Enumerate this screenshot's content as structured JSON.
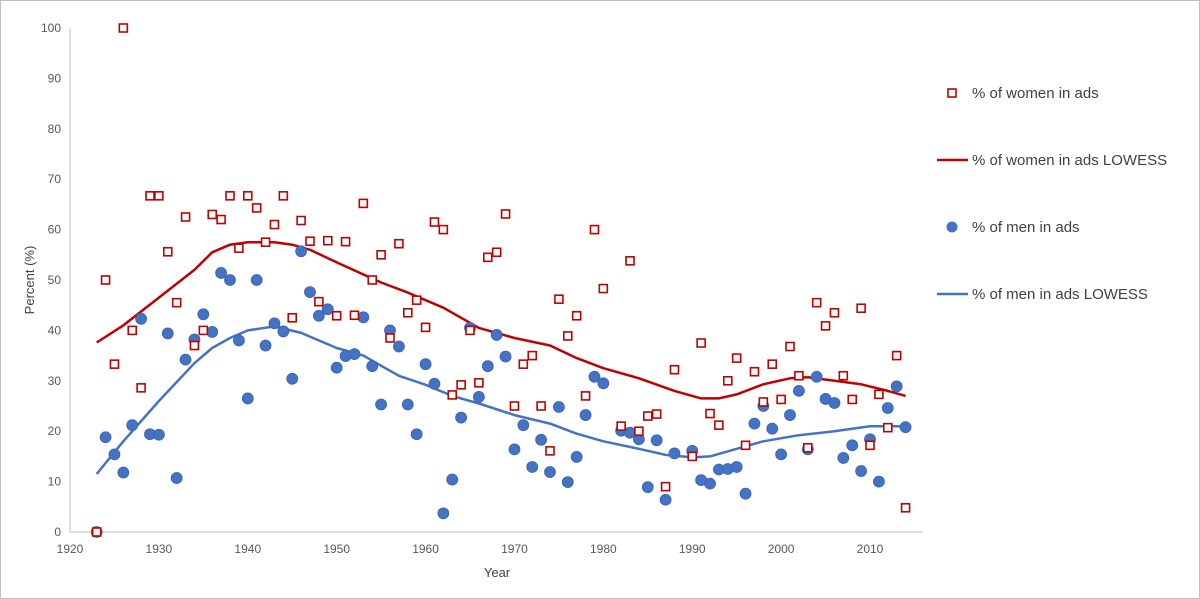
{
  "chart_data": {
    "type": "scatter",
    "title": "",
    "xlabel": "Year",
    "ylabel": "Percent (%)",
    "xlim": [
      1920,
      2015
    ],
    "ylim": [
      0,
      100
    ],
    "x_ticks": [
      "1920",
      "1930",
      "1940",
      "1950",
      "1960",
      "1970",
      "1980",
      "1990",
      "2000",
      "2010"
    ],
    "y_ticks": [
      "0",
      "10",
      "20",
      "30",
      "40",
      "50",
      "60",
      "70",
      "80",
      "90",
      "100"
    ],
    "grid": false,
    "legend_position": "right",
    "series": [
      {
        "name": "% of women in ads",
        "kind": "scatter",
        "marker": "hollow-square",
        "color": "#c00000",
        "points": [
          [
            1923,
            0
          ],
          [
            1924,
            50
          ],
          [
            1925,
            33.3
          ],
          [
            1926,
            100
          ],
          [
            1927,
            40
          ],
          [
            1928,
            28.6
          ],
          [
            1929,
            66.7
          ],
          [
            1930,
            66.7
          ],
          [
            1931,
            55.6
          ],
          [
            1932,
            45.5
          ],
          [
            1933,
            62.5
          ],
          [
            1934,
            37
          ],
          [
            1935,
            40
          ],
          [
            1936,
            63
          ],
          [
            1937,
            62
          ],
          [
            1938,
            66.7
          ],
          [
            1939,
            56.3
          ],
          [
            1940,
            66.7
          ],
          [
            1941,
            64.3
          ],
          [
            1942,
            57.5
          ],
          [
            1943,
            61
          ],
          [
            1944,
            66.7
          ],
          [
            1945,
            42.5
          ],
          [
            1946,
            61.8
          ],
          [
            1947,
            57.7
          ],
          [
            1948,
            45.7
          ],
          [
            1949,
            57.8
          ],
          [
            1950,
            42.9
          ],
          [
            1951,
            57.6
          ],
          [
            1952,
            43
          ],
          [
            1953,
            65.2
          ],
          [
            1954,
            50
          ],
          [
            1955,
            55
          ],
          [
            1956,
            38.5
          ],
          [
            1957,
            57.2
          ],
          [
            1958,
            43.5
          ],
          [
            1959,
            46
          ],
          [
            1960,
            40.6
          ],
          [
            1961,
            61.5
          ],
          [
            1962,
            60
          ],
          [
            1963,
            27.2
          ],
          [
            1964,
            29.2
          ],
          [
            1965,
            40
          ],
          [
            1966,
            29.6
          ],
          [
            1967,
            54.5
          ],
          [
            1968,
            55.5
          ],
          [
            1969,
            63.1
          ],
          [
            1970,
            25
          ],
          [
            1971,
            33.3
          ],
          [
            1972,
            35
          ],
          [
            1973,
            25
          ],
          [
            1974,
            16.1
          ],
          [
            1975,
            46.2
          ],
          [
            1976,
            38.9
          ],
          [
            1977,
            42.9
          ],
          [
            1978,
            27
          ],
          [
            1979,
            60
          ],
          [
            1980,
            48.3
          ],
          [
            1982,
            21
          ],
          [
            1983,
            53.8
          ],
          [
            1984,
            20
          ],
          [
            1985,
            23
          ],
          [
            1986,
            23.4
          ],
          [
            1987,
            9
          ],
          [
            1988,
            32.2
          ],
          [
            1990,
            15
          ],
          [
            1991,
            37.5
          ],
          [
            1992,
            23.5
          ],
          [
            1993,
            21.2
          ],
          [
            1994,
            30
          ],
          [
            1995,
            34.5
          ],
          [
            1996,
            17.2
          ],
          [
            1997,
            31.8
          ],
          [
            1998,
            25.8
          ],
          [
            1999,
            33.3
          ],
          [
            2000,
            26.3
          ],
          [
            2001,
            36.8
          ],
          [
            2002,
            31
          ],
          [
            2003,
            16.7
          ],
          [
            2004,
            45.5
          ],
          [
            2005,
            40.9
          ],
          [
            2006,
            43.5
          ],
          [
            2007,
            31
          ],
          [
            2008,
            26.3
          ],
          [
            2009,
            44.4
          ],
          [
            2010,
            17.2
          ],
          [
            2011,
            27.3
          ],
          [
            2012,
            20.7
          ],
          [
            2013,
            35
          ],
          [
            2014,
            4.8
          ]
        ]
      },
      {
        "name": "% of women in ads LOWESS",
        "kind": "line",
        "color": "#c00000",
        "points": [
          [
            1923,
            37.6
          ],
          [
            1926,
            41
          ],
          [
            1930,
            46.5
          ],
          [
            1934,
            52
          ],
          [
            1936,
            55.5
          ],
          [
            1938,
            57
          ],
          [
            1940,
            57.5
          ],
          [
            1943,
            57.5
          ],
          [
            1945,
            57
          ],
          [
            1947,
            56
          ],
          [
            1950,
            53.5
          ],
          [
            1955,
            49.5
          ],
          [
            1958,
            47.5
          ],
          [
            1962,
            44.5
          ],
          [
            1966,
            40.5
          ],
          [
            1970,
            38.5
          ],
          [
            1974,
            37
          ],
          [
            1977,
            34.5
          ],
          [
            1980,
            32.5
          ],
          [
            1984,
            30.5
          ],
          [
            1988,
            28
          ],
          [
            1991,
            26.5
          ],
          [
            1993,
            26.5
          ],
          [
            1995,
            27.3
          ],
          [
            1998,
            29.3
          ],
          [
            2001,
            30.5
          ],
          [
            2003,
            30.7
          ],
          [
            2006,
            30
          ],
          [
            2009,
            29.3
          ],
          [
            2012,
            28
          ],
          [
            2014,
            27
          ]
        ]
      },
      {
        "name": "% of men in ads",
        "kind": "scatter",
        "marker": "filled-circle",
        "color": "#4472c4",
        "points": [
          [
            1923,
            0
          ],
          [
            1924,
            18.8
          ],
          [
            1925,
            15.4
          ],
          [
            1926,
            11.8
          ],
          [
            1927,
            21.2
          ],
          [
            1928,
            42.3
          ],
          [
            1929,
            19.4
          ],
          [
            1930,
            19.3
          ],
          [
            1931,
            39.4
          ],
          [
            1932,
            10.7
          ],
          [
            1933,
            34.2
          ],
          [
            1934,
            38.2
          ],
          [
            1935,
            43.2
          ],
          [
            1936,
            39.7
          ],
          [
            1937,
            51.4
          ],
          [
            1938,
            50
          ],
          [
            1939,
            38
          ],
          [
            1940,
            26.5
          ],
          [
            1941,
            50
          ],
          [
            1942,
            37
          ],
          [
            1943,
            41.4
          ],
          [
            1944,
            39.8
          ],
          [
            1945,
            30.4
          ],
          [
            1946,
            55.7
          ],
          [
            1947,
            47.6
          ],
          [
            1948,
            42.9
          ],
          [
            1949,
            44.2
          ],
          [
            1950,
            32.6
          ],
          [
            1951,
            34.9
          ],
          [
            1952,
            35.3
          ],
          [
            1953,
            42.6
          ],
          [
            1954,
            32.9
          ],
          [
            1955,
            25.3
          ],
          [
            1956,
            40
          ],
          [
            1957,
            36.8
          ],
          [
            1958,
            25.3
          ],
          [
            1959,
            19.4
          ],
          [
            1960,
            33.3
          ],
          [
            1961,
            29.4
          ],
          [
            1962,
            3.7
          ],
          [
            1963,
            10.4
          ],
          [
            1964,
            22.7
          ],
          [
            1965,
            40.5
          ],
          [
            1966,
            26.8
          ],
          [
            1967,
            32.9
          ],
          [
            1968,
            39.1
          ],
          [
            1969,
            34.8
          ],
          [
            1970,
            16.4
          ],
          [
            1971,
            21.2
          ],
          [
            1972,
            12.9
          ],
          [
            1973,
            18.3
          ],
          [
            1974,
            11.9
          ],
          [
            1975,
            24.8
          ],
          [
            1976,
            9.9
          ],
          [
            1977,
            14.9
          ],
          [
            1978,
            23.2
          ],
          [
            1979,
            30.8
          ],
          [
            1980,
            29.5
          ],
          [
            1982,
            20.1
          ],
          [
            1983,
            19.7
          ],
          [
            1984,
            18.4
          ],
          [
            1985,
            8.9
          ],
          [
            1986,
            18.2
          ],
          [
            1987,
            6.4
          ],
          [
            1988,
            15.6
          ],
          [
            1990,
            16.1
          ],
          [
            1991,
            10.3
          ],
          [
            1992,
            9.6
          ],
          [
            1993,
            12.4
          ],
          [
            1994,
            12.5
          ],
          [
            1995,
            12.9
          ],
          [
            1996,
            7.6
          ],
          [
            1997,
            21.5
          ],
          [
            1998,
            25
          ],
          [
            1999,
            20.5
          ],
          [
            2000,
            15.4
          ],
          [
            2001,
            23.2
          ],
          [
            2002,
            28
          ],
          [
            2003,
            16.4
          ],
          [
            2004,
            30.8
          ],
          [
            2005,
            26.4
          ],
          [
            2006,
            25.6
          ],
          [
            2007,
            14.7
          ],
          [
            2008,
            17.2
          ],
          [
            2009,
            12.1
          ],
          [
            2010,
            18.4
          ],
          [
            2011,
            10
          ],
          [
            2012,
            24.6
          ],
          [
            2013,
            28.9
          ],
          [
            2014,
            20.8
          ]
        ]
      },
      {
        "name": "% of men in ads LOWESS",
        "kind": "line",
        "color": "#4472c4",
        "points": [
          [
            1923,
            11.5
          ],
          [
            1926,
            18
          ],
          [
            1930,
            26
          ],
          [
            1934,
            33.5
          ],
          [
            1936,
            36.5
          ],
          [
            1938,
            38.5
          ],
          [
            1940,
            40
          ],
          [
            1943,
            40.8
          ],
          [
            1946,
            39.5
          ],
          [
            1950,
            36.5
          ],
          [
            1953,
            35
          ],
          [
            1955,
            33
          ],
          [
            1957,
            31
          ],
          [
            1960,
            29.2
          ],
          [
            1963,
            27
          ],
          [
            1966,
            25.5
          ],
          [
            1970,
            23.2
          ],
          [
            1974,
            21.5
          ],
          [
            1977,
            19.5
          ],
          [
            1980,
            18
          ],
          [
            1984,
            16.5
          ],
          [
            1987,
            15.3
          ],
          [
            1990,
            14.8
          ],
          [
            1992,
            15
          ],
          [
            1995,
            16.5
          ],
          [
            1998,
            18
          ],
          [
            2002,
            19.2
          ],
          [
            2006,
            20
          ],
          [
            2010,
            21
          ],
          [
            2014,
            21
          ]
        ]
      }
    ]
  }
}
